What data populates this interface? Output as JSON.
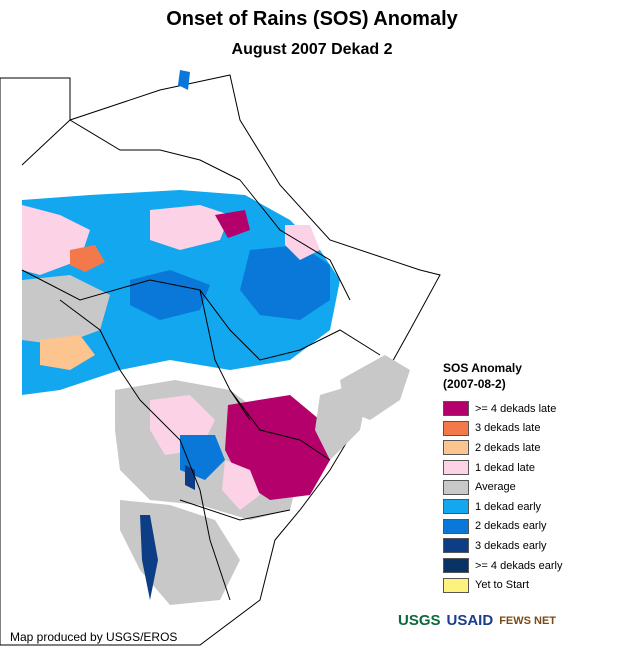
{
  "title": "Onset of Rains (SOS) Anomaly",
  "subtitle": "August 2007 Dekad 2",
  "legend": {
    "title": "SOS Anomaly",
    "date": "(2007-08-2)",
    "items": [
      {
        "label": ">= 4 dekads late",
        "color": "#b3006b"
      },
      {
        "label": "3 dekads late",
        "color": "#f4794a"
      },
      {
        "label": "2 dekads late",
        "color": "#fcc48f"
      },
      {
        "label": "1 dekad late",
        "color": "#fcd2e6"
      },
      {
        "label": "Average",
        "color": "#c8c8c8"
      },
      {
        "label": "1 dekad early",
        "color": "#12a7ef"
      },
      {
        "label": "2 dekads early",
        "color": "#0a78d8"
      },
      {
        "label": "3 dekads early",
        "color": "#0d3d85"
      },
      {
        "label": ">= 4 dekads early",
        "color": "#093265"
      },
      {
        "label": "Yet to Start",
        "color": "#fbf37e"
      }
    ]
  },
  "credit": "Map produced by USGS/EROS",
  "logos": {
    "usgs": "USGS",
    "usaid": "USAID",
    "fews": "FEWS NET"
  }
}
